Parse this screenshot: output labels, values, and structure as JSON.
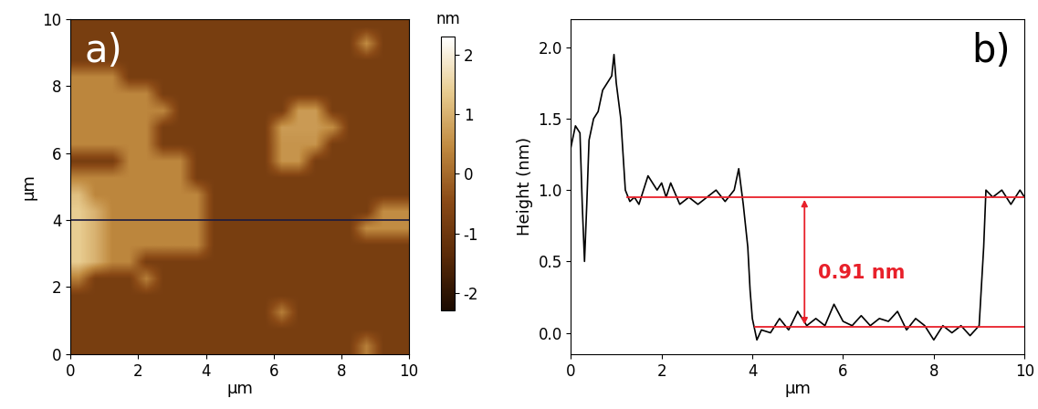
{
  "chart_data": [
    {
      "type": "heatmap",
      "panel_label": "a)",
      "xlabel": "µm",
      "ylabel": "µm",
      "xlim": [
        0,
        10
      ],
      "ylim": [
        0,
        10
      ],
      "xticks": [
        0,
        2,
        4,
        6,
        8,
        10
      ],
      "yticks": [
        0,
        2,
        4,
        6,
        8,
        10
      ],
      "colorbar_label": "nm",
      "colorbar_range": [
        -2.3,
        2.3
      ],
      "colorbar_ticks": [
        -2,
        -1,
        0,
        1,
        2
      ],
      "profile_line": 4,
      "profile_color": "#1a1a40",
      "cells": [
        [
          -0.8,
          -0.8,
          -0.8,
          -0.8,
          -0.8,
          -0.8,
          -0.8,
          -0.8,
          -0.8,
          -0.8,
          -0.8,
          -0.8,
          -0.8,
          -0.8,
          -0.8,
          -0.8,
          -0.8,
          0.3,
          -0.8,
          -0.8
        ],
        [
          -0.8,
          -0.8,
          -0.8,
          -0.8,
          -0.8,
          -0.8,
          -0.8,
          -0.8,
          -0.8,
          -0.8,
          -0.8,
          -0.8,
          -0.8,
          -0.8,
          -0.8,
          -0.8,
          -0.8,
          -0.8,
          -0.8,
          -0.8
        ],
        [
          -0.8,
          -0.8,
          -0.8,
          -0.8,
          -0.8,
          -0.8,
          -0.8,
          -0.8,
          -0.8,
          -0.8,
          -0.8,
          -0.8,
          0.3,
          -0.8,
          -0.8,
          -0.8,
          -0.8,
          -0.8,
          -0.8,
          -0.8
        ],
        [
          -0.8,
          -0.8,
          -0.8,
          -0.8,
          -0.8,
          -0.8,
          -0.8,
          -0.8,
          -0.8,
          -0.8,
          -0.8,
          -0.8,
          -0.8,
          -0.8,
          -0.8,
          -0.8,
          -0.8,
          -0.8,
          -0.8,
          -0.8
        ],
        [
          0.3,
          -0.8,
          -0.8,
          -0.8,
          0.3,
          -0.8,
          -0.8,
          -0.8,
          -0.8,
          -0.8,
          -0.8,
          -0.8,
          -0.8,
          -0.8,
          -0.8,
          -0.8,
          -0.8,
          -0.8,
          -0.8,
          -0.8
        ],
        [
          1.4,
          1.0,
          0.4,
          0.4,
          -0.8,
          -0.8,
          -0.8,
          -0.8,
          -0.8,
          -0.8,
          -0.8,
          -0.8,
          -0.8,
          -0.8,
          -0.8,
          -0.8,
          -0.8,
          -0.8,
          -0.8,
          -0.8
        ],
        [
          1.4,
          1.0,
          0.4,
          0.4,
          0.4,
          0.4,
          0.4,
          0.4,
          -0.8,
          -0.8,
          -0.8,
          -0.8,
          -0.8,
          -0.8,
          -0.8,
          -0.8,
          -0.8,
          -0.8,
          -0.8,
          -0.8
        ],
        [
          1.4,
          1.0,
          0.4,
          0.4,
          0.4,
          0.4,
          0.4,
          0.4,
          -0.8,
          -0.8,
          -0.8,
          -0.8,
          -0.8,
          -0.8,
          -0.8,
          -0.8,
          -0.8,
          0.5,
          0.5,
          0.5
        ],
        [
          1.4,
          1.0,
          0.4,
          0.4,
          0.4,
          0.4,
          0.4,
          0.4,
          -0.8,
          -0.8,
          -0.8,
          -0.8,
          -0.8,
          -0.8,
          -0.8,
          -0.8,
          -0.8,
          -0.8,
          0.5,
          0.5
        ],
        [
          1.2,
          0.4,
          0.4,
          0.4,
          0.4,
          0.4,
          0.4,
          0.4,
          -0.8,
          -0.8,
          -0.8,
          -0.8,
          -0.8,
          -0.8,
          -0.8,
          -0.8,
          -0.8,
          -0.8,
          -0.8,
          -0.8
        ],
        [
          0.4,
          0.4,
          0.4,
          0.4,
          0.4,
          0.4,
          0.4,
          -0.8,
          -0.8,
          -0.8,
          -0.8,
          -0.8,
          -0.8,
          -0.8,
          -0.8,
          -0.8,
          -0.8,
          -0.8,
          -0.8,
          -0.8
        ],
        [
          -0.8,
          -0.8,
          -0.8,
          0.4,
          0.4,
          0.4,
          0.4,
          -0.8,
          -0.8,
          -0.8,
          -0.8,
          -0.8,
          0.6,
          0.6,
          -0.8,
          -0.8,
          -0.8,
          -0.8,
          -0.8,
          -0.8
        ],
        [
          0.4,
          0.4,
          0.4,
          0.4,
          0.4,
          -0.8,
          -0.8,
          -0.8,
          -0.8,
          -0.8,
          -0.8,
          -0.8,
          0.6,
          0.6,
          0.6,
          -0.8,
          -0.8,
          -0.8,
          -0.8,
          -0.8
        ],
        [
          0.4,
          0.4,
          0.4,
          0.4,
          0.4,
          -0.8,
          -0.8,
          -0.8,
          -0.8,
          -0.8,
          -0.8,
          -0.8,
          0.7,
          0.7,
          0.7,
          0.5,
          -0.8,
          -0.8,
          -0.8,
          -0.8
        ],
        [
          0.4,
          0.4,
          0.4,
          0.4,
          0.4,
          0.4,
          -0.8,
          -0.8,
          -0.8,
          -0.8,
          -0.8,
          -0.8,
          -0.8,
          0.7,
          0.7,
          -0.8,
          -0.8,
          -0.8,
          -0.8,
          -0.8
        ],
        [
          0.4,
          0.4,
          0.4,
          0.4,
          0.4,
          -0.8,
          -0.8,
          -0.8,
          -0.8,
          -0.8,
          -0.8,
          -0.8,
          -0.8,
          -0.8,
          -0.8,
          -0.8,
          -0.8,
          -0.8,
          -0.8,
          -0.8
        ],
        [
          0.4,
          0.4,
          0.4,
          -0.8,
          -0.8,
          -0.8,
          -0.8,
          -0.8,
          -0.8,
          -0.8,
          -0.8,
          -0.8,
          -0.8,
          -0.8,
          -0.8,
          -0.8,
          -0.8,
          -0.8,
          -0.8,
          -0.8
        ],
        [
          -0.8,
          -0.8,
          -0.8,
          -0.8,
          -0.8,
          -0.8,
          -0.8,
          -0.8,
          -0.8,
          -0.8,
          -0.8,
          -0.8,
          -0.8,
          -0.8,
          -0.8,
          -0.8,
          -0.8,
          -0.8,
          -0.8,
          -0.8
        ],
        [
          -0.8,
          -0.8,
          -0.8,
          -0.8,
          -0.8,
          -0.8,
          -0.8,
          -0.8,
          -0.8,
          -0.8,
          -0.8,
          -0.8,
          -0.8,
          -0.8,
          -0.8,
          -0.8,
          -0.8,
          0.5,
          -0.8,
          -0.8
        ],
        [
          -0.8,
          -0.8,
          -0.8,
          -0.8,
          -0.8,
          -0.8,
          -0.8,
          -0.8,
          -0.8,
          -0.8,
          -0.8,
          -0.8,
          -0.8,
          -0.8,
          -0.8,
          -0.8,
          -0.8,
          -0.8,
          -0.8,
          -0.8
        ]
      ]
    },
    {
      "type": "line",
      "panel_label": "b)",
      "xlabel": "µm",
      "ylabel": "Height (nm)",
      "xlim": [
        0,
        10
      ],
      "ylim": [
        -0.15,
        2.2
      ],
      "xticks": [
        0,
        2,
        4,
        6,
        8,
        10
      ],
      "yticks": [
        0.0,
        0.5,
        1.0,
        1.5,
        2.0
      ],
      "color": "#000000",
      "x": [
        0.0,
        0.1,
        0.2,
        0.25,
        0.3,
        0.35,
        0.4,
        0.5,
        0.6,
        0.7,
        0.8,
        0.9,
        0.95,
        1.0,
        1.1,
        1.2,
        1.3,
        1.4,
        1.5,
        1.6,
        1.7,
        1.8,
        1.9,
        2.0,
        2.1,
        2.2,
        2.4,
        2.6,
        2.8,
        3.0,
        3.2,
        3.4,
        3.6,
        3.7,
        3.8,
        3.9,
        3.95,
        4.0,
        4.1,
        4.2,
        4.4,
        4.6,
        4.8,
        5.0,
        5.2,
        5.4,
        5.6,
        5.8,
        6.0,
        6.2,
        6.4,
        6.6,
        6.8,
        7.0,
        7.2,
        7.4,
        7.6,
        7.8,
        8.0,
        8.2,
        8.4,
        8.6,
        8.8,
        9.0,
        9.1,
        9.15,
        9.3,
        9.5,
        9.7,
        9.9,
        10.0
      ],
      "values": [
        1.3,
        1.45,
        1.4,
        0.9,
        0.5,
        0.9,
        1.35,
        1.5,
        1.55,
        1.7,
        1.75,
        1.8,
        1.95,
        1.75,
        1.5,
        1.0,
        0.92,
        0.95,
        0.9,
        1.0,
        1.1,
        1.05,
        1.0,
        1.05,
        0.95,
        1.05,
        0.9,
        0.95,
        0.9,
        0.95,
        1.0,
        0.92,
        1.0,
        1.15,
        0.9,
        0.6,
        0.3,
        0.1,
        -0.05,
        0.02,
        0.0,
        0.1,
        0.02,
        0.15,
        0.05,
        0.1,
        0.05,
        0.2,
        0.08,
        0.05,
        0.12,
        0.05,
        0.1,
        0.08,
        0.15,
        0.02,
        0.1,
        0.05,
        -0.05,
        0.05,
        0.0,
        0.05,
        -0.02,
        0.05,
        0.6,
        1.0,
        0.95,
        1.0,
        0.9,
        1.0,
        0.95
      ],
      "reference_lines": [
        {
          "y": 0.95,
          "x": [
            1.25,
            10
          ]
        },
        {
          "y": 0.04,
          "x": [
            4.05,
            10
          ]
        }
      ],
      "reference_color": "#e8202a",
      "arrow_x": 5.15,
      "annotation": {
        "text": "0.91 nm",
        "x": 6.4,
        "y": 0.42
      }
    }
  ]
}
